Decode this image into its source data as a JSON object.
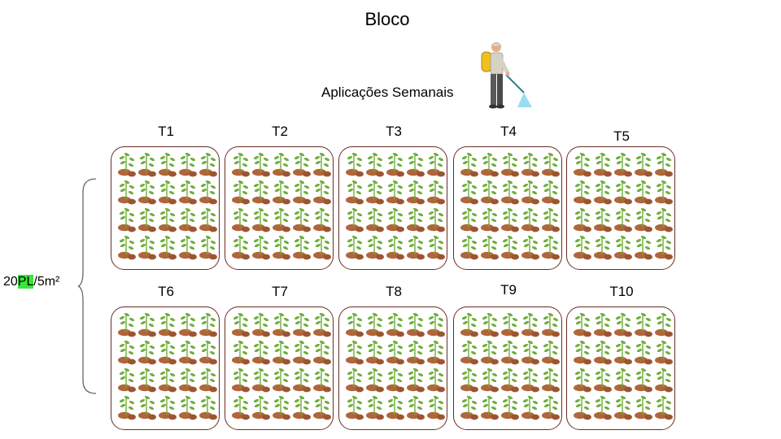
{
  "title": "Bloco",
  "application_label": "Aplicações Semanais",
  "density": {
    "prefix": "20",
    "highlight": "PL",
    "suffix": "/5m²",
    "highlight_color": "#39e639"
  },
  "icons": {
    "sprayer": "person-spraying-icon",
    "brace": "curly-brace-icon",
    "plant": "plant-icon"
  },
  "colors": {
    "border": "#6b2b25",
    "soil": "#b0663a",
    "leaf": "#6fae3a"
  },
  "plots": [
    {
      "label": "T1"
    },
    {
      "label": "T2"
    },
    {
      "label": "T3"
    },
    {
      "label": "T4"
    },
    {
      "label": "T5"
    },
    {
      "label": "T6"
    },
    {
      "label": "T7"
    },
    {
      "label": "T8"
    },
    {
      "label": "T9"
    },
    {
      "label": "T10"
    }
  ]
}
